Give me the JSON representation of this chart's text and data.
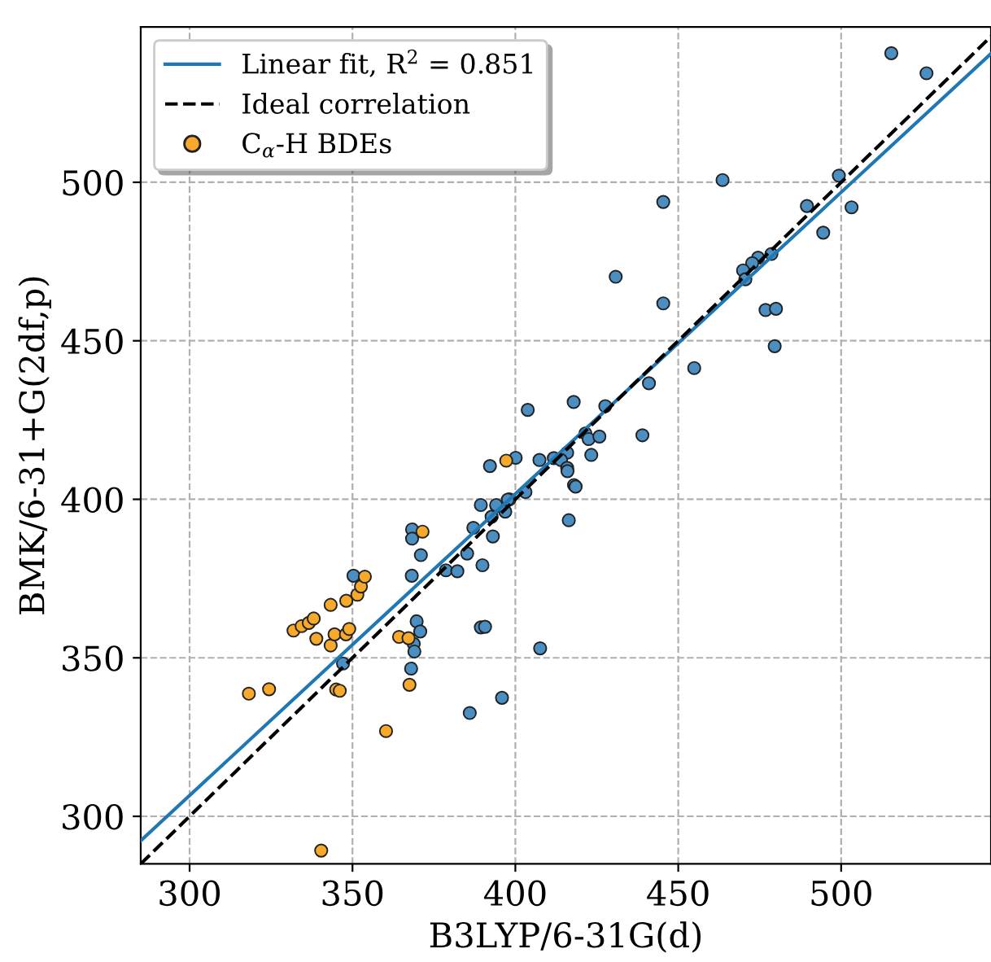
{
  "chart_data": {
    "type": "scatter",
    "xlabel": "B3LYP/6-31G(d)",
    "ylabel": "BMK/6-31+G(2df,p)",
    "xlim": [
      285,
      546
    ],
    "ylim": [
      285,
      549
    ],
    "xticks": [
      300,
      350,
      400,
      450,
      500
    ],
    "yticks": [
      300,
      350,
      400,
      450,
      500
    ],
    "grid": true,
    "legend": "top left",
    "series": [
      {
        "marker": "circle",
        "color": "#4a8ec2",
        "x": [
          347.1,
          350.3,
          368.3,
          368.3,
          371.0,
          368.2,
          378.7,
          382.2,
          385.2,
          387.1,
          389.9,
          393.1,
          389.4,
          392.7,
          394.2,
          398.2,
          369.7,
          370.8,
          368.8,
          369.0,
          368.0,
          389.4,
          390.7,
          386.0,
          395.9,
          445.4,
          476.8,
          480.0,
          479.6,
          454.9,
          441.0,
          403.8,
          417.9,
          427.6,
          421.5,
          422.5,
          425.8,
          439.0,
          423.3,
          415.9,
          411.8,
          414.0,
          407.4,
          400.1,
          392.2,
          415.9,
          416.0,
          418.0,
          418.5,
          403.1,
          397.7,
          394.1,
          396.9,
          416.4,
          407.6,
          430.8,
          445.4,
          515.4,
          526.2,
          463.6,
          499.3,
          489.5,
          503.2,
          494.5,
          478.6,
          474.5,
          472.7,
          469.9,
          470.6
        ],
        "values": [
          348.2,
          375.9,
          390.5,
          387.6,
          382.4,
          375.9,
          377.6,
          377.3,
          382.9,
          391.0,
          379.2,
          388.3,
          398.2,
          394.5,
          397.8,
          400.0,
          361.5,
          358.3,
          354.4,
          352.0,
          346.6,
          359.6,
          359.8,
          332.6,
          337.4,
          461.8,
          459.7,
          460.1,
          448.3,
          441.4,
          436.6,
          428.2,
          430.7,
          429.4,
          420.8,
          419.0,
          419.8,
          420.2,
          414.0,
          414.7,
          413.0,
          412.4,
          412.4,
          413.1,
          410.5,
          409.9,
          408.9,
          404.5,
          404.0,
          402.3,
          399.9,
          398.2,
          396.1,
          393.4,
          353.0,
          470.2,
          493.8,
          540.7,
          534.4,
          500.7,
          502.1,
          492.5,
          492.1,
          484.1,
          477.4,
          476.2,
          474.5,
          472.2,
          469.4
        ]
      },
      {
        "marker": "circle",
        "name": "C$_{α}$-H BDEs",
        "color": "#f6a92b",
        "x": [
          318.2,
          324.4,
          331.9,
          334.4,
          336.6,
          338.1,
          338.9,
          343.3,
          343.3,
          344.5,
          345.0,
          346.1,
          348.0,
          349.0,
          348.1,
          351.5,
          352.6,
          353.8,
          364.3,
          367.2,
          367.5,
          360.3,
          340.4,
          371.5,
          397.2
        ],
        "values": [
          338.7,
          340.1,
          358.6,
          360.0,
          361.0,
          362.4,
          356.0,
          366.7,
          353.9,
          357.4,
          340.0,
          339.6,
          357.4,
          359.1,
          368.0,
          369.9,
          372.5,
          375.6,
          356.6,
          356.2,
          341.5,
          326.9,
          289.2,
          389.8,
          412.2
        ]
      },
      {
        "type": "line",
        "name": "Linear fit, R$^{2}$ = 0.851",
        "color": "#1f77b4",
        "marker": "none",
        "line_style": "solid",
        "x": [
          285,
          546
        ],
        "values": [
          292.3,
          540.6
        ]
      },
      {
        "type": "line",
        "name": "Ideal correlation",
        "color": "#000000",
        "marker": "none",
        "line_style": "dashed",
        "x": [
          285,
          546
        ],
        "values": [
          285,
          546
        ]
      }
    ]
  }
}
